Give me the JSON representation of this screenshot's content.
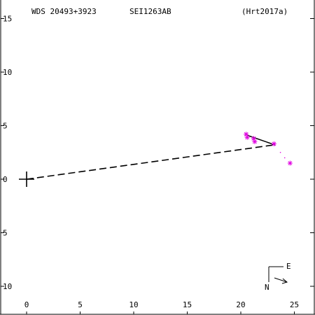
{
  "header": {
    "wds": "WDS 20493+3923",
    "disc": "SEI1263AB",
    "ref": "(Hrt2017a)"
  },
  "compass": {
    "east": "E",
    "north": "N"
  },
  "chart_data": {
    "type": "scatter",
    "title": "",
    "xlim": [
      -2.5,
      27.0
    ],
    "ylim": [
      -12.8,
      16.3
    ],
    "x_ticks": [
      0,
      5,
      10,
      15,
      20,
      25
    ],
    "y_ticks": [
      15,
      10,
      5,
      0,
      -5,
      -10
    ],
    "x_tick_labels": [
      "0",
      "5",
      "10",
      "15",
      "20",
      "25"
    ],
    "y_tick_labels": [
      "15",
      "10",
      "5",
      "0",
      "5",
      "10"
    ],
    "primary": {
      "x": 0,
      "y": 0
    },
    "observations": [
      {
        "x": 20.5,
        "y": 4.2
      },
      {
        "x": 20.6,
        "y": 3.9
      },
      {
        "x": 21.2,
        "y": 3.8
      },
      {
        "x": 21.3,
        "y": 3.5
      },
      {
        "x": 23.1,
        "y": 3.3
      },
      {
        "x": 24.6,
        "y": 1.5
      }
    ],
    "motion_line": [
      [
        20.6,
        4.1
      ],
      [
        23.2,
        3.2
      ]
    ],
    "residual_dots": [
      [
        23.7,
        2.5
      ],
      [
        24.1,
        2.0
      ]
    ],
    "dashed_line": [
      [
        0,
        0
      ],
      [
        23.1,
        3.2
      ]
    ],
    "colors": {
      "observation": "#e000e0",
      "line": "#000000"
    }
  }
}
